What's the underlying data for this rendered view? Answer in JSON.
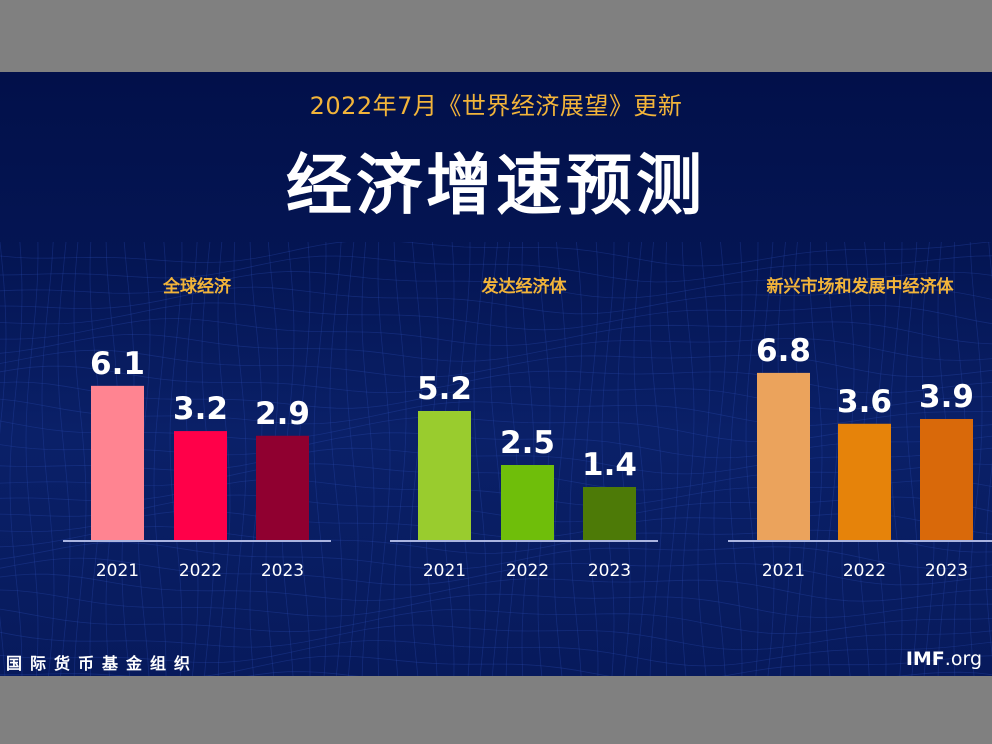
{
  "header": {
    "subtitle": "2022年7月《世界经济展望》更新",
    "title": "经济增速预测"
  },
  "footer": {
    "org_name": "国际货币基金组织",
    "site_bold": "IMF",
    "site_rest": ".org"
  },
  "colors": {
    "background": "#041553",
    "accent_gold": "#f2b43a",
    "baseline": "#aab4e0"
  },
  "chart_data": [
    {
      "type": "bar",
      "title": "全球经济",
      "categories": [
        "2021",
        "2022",
        "2023"
      ],
      "values": [
        6.1,
        3.2,
        2.9
      ],
      "value_labels": [
        "6.1",
        "3.2",
        "2.9"
      ],
      "colors": [
        "#ff8491",
        "#ff0049",
        "#900030"
      ],
      "xlabel": "",
      "ylabel": "",
      "grid": false
    },
    {
      "type": "bar",
      "title": "发达经济体",
      "categories": [
        "2021",
        "2022",
        "2023"
      ],
      "values": [
        5.2,
        2.5,
        1.4
      ],
      "value_labels": [
        "5.2",
        "2.5",
        "1.4"
      ],
      "colors": [
        "#99cc2e",
        "#6fbe0a",
        "#4d7a07"
      ],
      "xlabel": "",
      "ylabel": "",
      "grid": false
    },
    {
      "type": "bar",
      "title": "新兴市场和发展中经济体",
      "categories": [
        "2021",
        "2022",
        "2023"
      ],
      "values": [
        6.8,
        3.6,
        3.9
      ],
      "value_labels": [
        "6.8",
        "3.6",
        "3.9"
      ],
      "colors": [
        "#eba35c",
        "#e6830a",
        "#d9690a"
      ],
      "xlabel": "",
      "ylabel": "",
      "grid": false
    }
  ]
}
